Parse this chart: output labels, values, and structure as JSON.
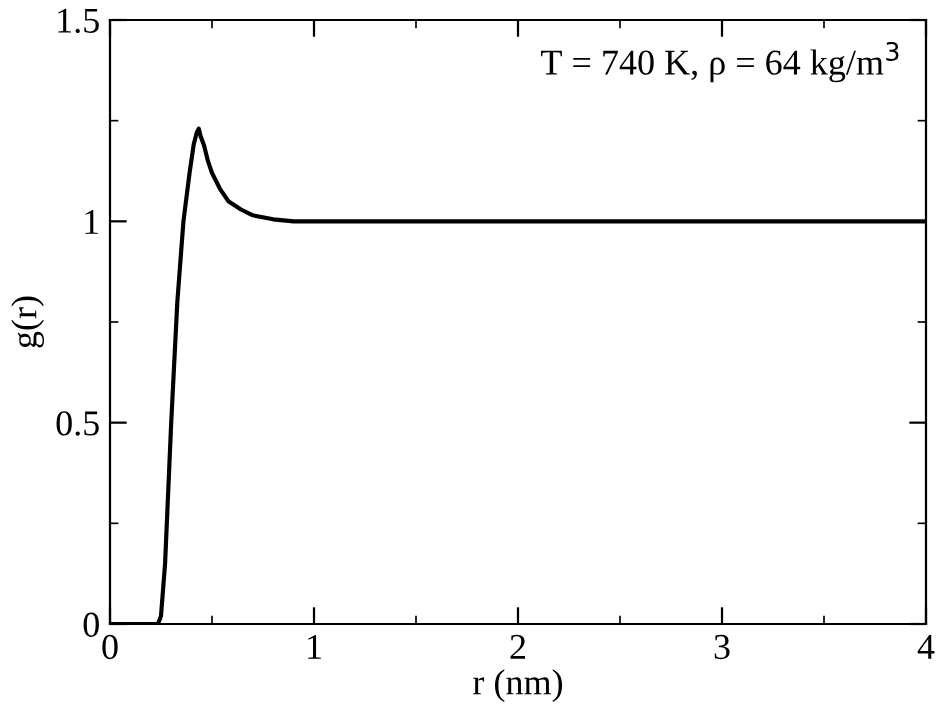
{
  "chart_data": {
    "type": "line",
    "xlabel": "r (nm)",
    "ylabel": "g(r)",
    "annotations": [
      "T = 740 K, ρ = 64 kg/m$^{3}$"
    ],
    "x": [
      0,
      0.2,
      0.235,
      0.25,
      0.27,
      0.3,
      0.33,
      0.36,
      0.39,
      0.41,
      0.425,
      0.435,
      0.445,
      0.46,
      0.48,
      0.5,
      0.54,
      0.58,
      0.64,
      0.7,
      0.8,
      0.9,
      1.0,
      1.5,
      2,
      2.5,
      3,
      3.5,
      4
    ],
    "values": [
      0,
      0,
      0,
      0.02,
      0.15,
      0.5,
      0.8,
      1.0,
      1.12,
      1.19,
      1.22,
      1.23,
      1.21,
      1.19,
      1.15,
      1.12,
      1.08,
      1.05,
      1.03,
      1.015,
      1.005,
      1.0,
      1.0,
      1.0,
      1.0,
      1.0,
      1.0,
      1.0,
      1.0
    ],
    "color": "#000000",
    "xlim": [
      0,
      4
    ],
    "ylim": [
      0,
      1.5
    ],
    "xticks": [
      0,
      1,
      2,
      3,
      4
    ],
    "yticks": [
      0,
      0.5,
      1,
      1.5
    ],
    "grid": false,
    "legend": false,
    "marker": "none",
    "line_style": "solid"
  }
}
